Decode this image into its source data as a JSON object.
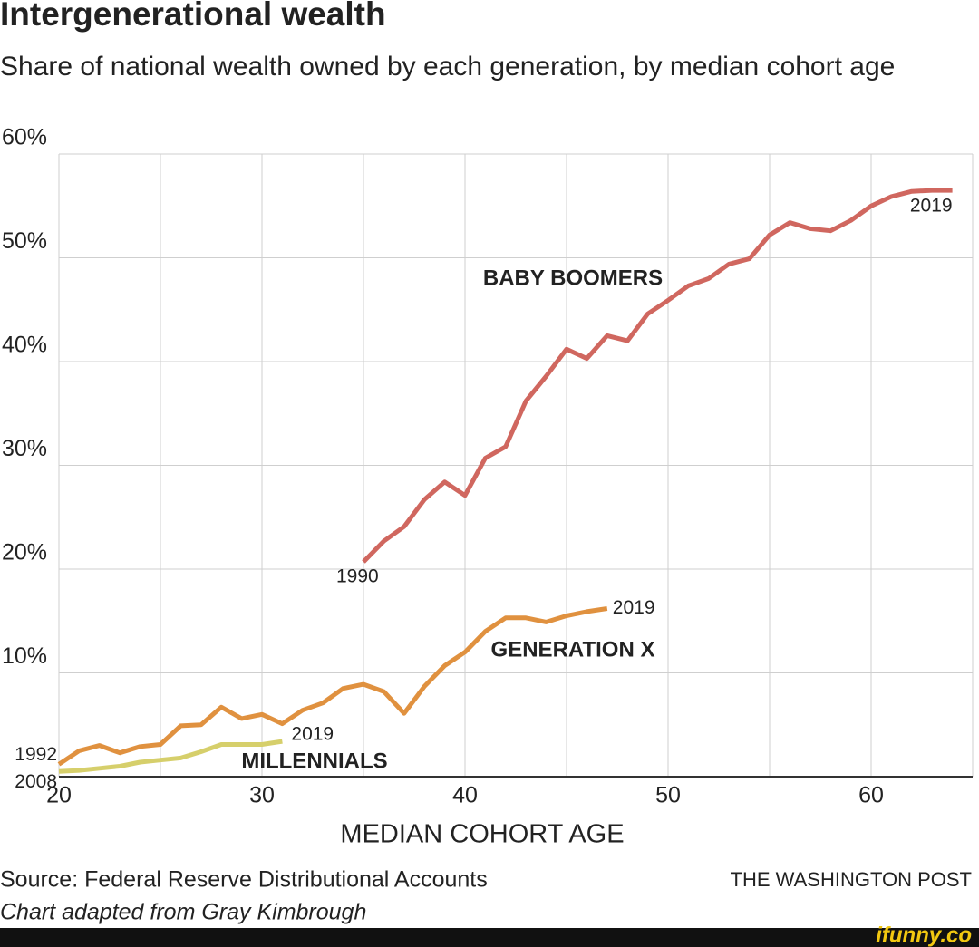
{
  "chart_data": {
    "type": "line",
    "title": "Intergenerational wealth",
    "subtitle": "Share of national wealth owned by each generation, by median cohort age",
    "x_label": "MEDIAN COHORT AGE",
    "source": "Source: Federal Reserve Distributional Accounts",
    "note": "Chart adapted from Gray Kimbrough",
    "publisher": "THE WASHINGTON POST",
    "watermark": "ifunny.co",
    "xlim": [
      20,
      65
    ],
    "xticks": [
      20,
      30,
      40,
      50,
      60
    ],
    "x_minor_gridlines": [
      25,
      35,
      45,
      55,
      65
    ],
    "ylim": [
      0,
      60
    ],
    "yticks": [
      {
        "value": 10,
        "label": "10%"
      },
      {
        "value": 20,
        "label": "20%"
      },
      {
        "value": 30,
        "label": "30%"
      },
      {
        "value": 40,
        "label": "40%"
      },
      {
        "value": 50,
        "label": "50%"
      },
      {
        "value": 60,
        "label": "60%"
      }
    ],
    "grid": true,
    "series": [
      {
        "name": "BABY BOOMERS",
        "color": "#d0675f",
        "start_label": "1990",
        "end_label": "2019",
        "x": [
          35,
          36,
          37,
          38,
          39,
          40,
          41,
          42,
          43,
          44,
          45,
          46,
          47,
          48,
          49,
          50,
          51,
          52,
          53,
          54,
          55,
          56,
          57,
          58,
          59,
          60,
          61,
          62,
          63,
          64
        ],
        "values": [
          20.7,
          22.7,
          24.1,
          26.7,
          28.4,
          27.1,
          30.7,
          31.8,
          36.2,
          38.6,
          41.2,
          40.3,
          42.5,
          42.0,
          44.6,
          45.9,
          47.3,
          48.0,
          49.4,
          49.9,
          52.2,
          53.4,
          52.8,
          52.6,
          53.6,
          55.0,
          55.9,
          56.4,
          56.5,
          56.5
        ]
      },
      {
        "name": "GENERATION X",
        "color": "#e0913f",
        "start_label": "1992",
        "end_label": "2019",
        "x": [
          20,
          21,
          22,
          23,
          24,
          25,
          26,
          27,
          28,
          29,
          30,
          31,
          32,
          33,
          34,
          35,
          36,
          37,
          38,
          39,
          40,
          41,
          42,
          43,
          44,
          45,
          46,
          47
        ],
        "values": [
          1.2,
          2.5,
          3.0,
          2.3,
          2.9,
          3.1,
          4.9,
          5.0,
          6.7,
          5.6,
          6.0,
          5.1,
          6.4,
          7.1,
          8.5,
          8.9,
          8.2,
          6.1,
          8.7,
          10.7,
          12.0,
          14.0,
          15.3,
          15.3,
          14.9,
          15.5,
          15.9,
          16.2
        ]
      },
      {
        "name": "MILLENNIALS",
        "color": "#d6cf6b",
        "start_label": "2008",
        "end_label": "2019",
        "x": [
          20,
          21,
          22,
          23,
          24,
          25,
          26,
          27,
          28,
          29,
          30,
          31
        ],
        "values": [
          0.5,
          0.6,
          0.8,
          1.0,
          1.4,
          1.6,
          1.8,
          2.4,
          3.1,
          3.1,
          3.1,
          3.4
        ]
      }
    ]
  }
}
